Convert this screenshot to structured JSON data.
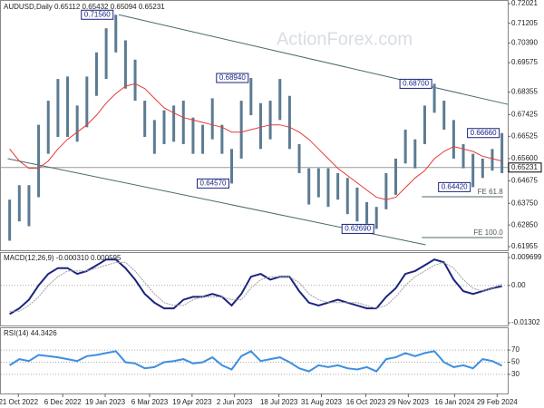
{
  "chart_data": [
    {
      "type": "ohlc",
      "title": "AUDUSD,Daily  0.65112 0.65432 0.65094 0.65231",
      "watermark": "ActionForex.com",
      "x": [
        "12 Oct 2022",
        "22 Oct 2022",
        "1 Nov 2022",
        "11 Nov 2022",
        "21 Nov 2022",
        "1 Dec 2022",
        "11 Dec 2022",
        "21 Dec 2022",
        "31 Dec 2022",
        "10 Jan 2023",
        "20 Jan 2023",
        "30 Jan 2023",
        "9 Feb 2023",
        "19 Feb 2023",
        "1 Mar 2023",
        "11 Mar 2023",
        "21 Mar 2023",
        "31 Mar 2023",
        "10 Apr 2023",
        "20 Apr 2023",
        "30 Apr 2023",
        "10 May 2023",
        "20 May 2023",
        "30 May 2023",
        "9 Jun 2023",
        "19 Jun 2023",
        "29 Jun 2023",
        "9 Jul 2023",
        "19 Jul 2023",
        "29 Jul 2023",
        "8 Aug 2023",
        "18 Aug 2023",
        "28 Aug 2023",
        "7 Sep 2023",
        "17 Sep 2023",
        "27 Sep 2023",
        "7 Oct 2023",
        "17 Oct 2023",
        "27 Oct 2023",
        "6 Nov 2023",
        "16 Nov 2023",
        "26 Nov 2023",
        "6 Dec 2023",
        "16 Dec 2023",
        "26 Dec 2023",
        "5 Jan 2024",
        "15 Jan 2024",
        "25 Jan 2024",
        "4 Feb 2024",
        "14 Feb 2024",
        "24 Feb 2024",
        "5 Mar 2024"
      ],
      "high": [
        0.639,
        0.645,
        0.645,
        0.67,
        0.68,
        0.689,
        0.69,
        0.678,
        0.69,
        0.7,
        0.71,
        0.7156,
        0.705,
        0.697,
        0.68,
        0.672,
        0.676,
        0.678,
        0.68,
        0.673,
        0.67,
        0.681,
        0.67,
        0.66,
        0.68,
        0.6894,
        0.679,
        0.68,
        0.689,
        0.682,
        0.662,
        0.652,
        0.652,
        0.652,
        0.65,
        0.648,
        0.644,
        0.638,
        0.636,
        0.65,
        0.656,
        0.668,
        0.664,
        0.678,
        0.687,
        0.68,
        0.672,
        0.662,
        0.658,
        0.656,
        0.66,
        0.6666
      ],
      "low": [
        0.622,
        0.63,
        0.628,
        0.64,
        0.658,
        0.665,
        0.665,
        0.663,
        0.669,
        0.682,
        0.689,
        0.7,
        0.685,
        0.68,
        0.665,
        0.658,
        0.662,
        0.663,
        0.662,
        0.658,
        0.658,
        0.664,
        0.658,
        0.6457,
        0.656,
        0.674,
        0.66,
        0.664,
        0.672,
        0.66,
        0.65,
        0.637,
        0.64,
        0.636,
        0.639,
        0.633,
        0.63,
        0.629,
        0.6269,
        0.635,
        0.641,
        0.654,
        0.652,
        0.662,
        0.675,
        0.668,
        0.656,
        0.652,
        0.6442,
        0.648,
        0.651,
        0.65
      ],
      "color": "#5b7b92",
      "ma": {
        "color": "#e53935",
        "values": [
          0.66,
          0.655,
          0.652,
          0.652,
          0.655,
          0.66,
          0.664,
          0.667,
          0.67,
          0.674,
          0.679,
          0.683,
          0.686,
          0.687,
          0.685,
          0.681,
          0.677,
          0.675,
          0.673,
          0.672,
          0.671,
          0.67,
          0.669,
          0.667,
          0.667,
          0.668,
          0.669,
          0.67,
          0.67,
          0.669,
          0.667,
          0.664,
          0.66,
          0.656,
          0.652,
          0.649,
          0.646,
          0.643,
          0.64,
          0.639,
          0.64,
          0.644,
          0.648,
          0.651,
          0.656,
          0.659,
          0.661,
          0.66,
          0.659,
          0.657,
          0.656,
          0.655
        ]
      },
      "last": 0.65231,
      "xlim": [
        "2 Oct 2022",
        "11 Mar 2024"
      ],
      "xticks": [
        "21 Oct 2022",
        "6 Dec 2022",
        "19 Jan 2023",
        "6 Mar 2023",
        "19 Apr 2023",
        "2 Jun 2023",
        "18 Jul 2023",
        "31 Aug 2023",
        "16 Oct 2023",
        "29 Nov 2023",
        "16 Jan 2024",
        "29 Feb 2024"
      ],
      "ylim": [
        0.61955,
        0.72021
      ],
      "yticks": [
        0.72021,
        0.71205,
        {
          "value": 0.7039,
          "label": "0.70390"
        },
        0.69575,
        0.68355,
        0.67425,
        0.66525,
        {
          "value": 0.656,
          "label": "0.65600"
        },
        0.64675,
        {
          "value": 0.6375,
          "label": "0.63750"
        },
        {
          "value": 0.6285,
          "label": "0.62850"
        },
        0.61955
      ],
      "channels": [
        {
          "x": [
            "2 Feb 2023",
            "11 Mar 2024"
          ],
          "y": [
            0.7156,
            0.6785
          ]
        },
        {
          "x": [
            "10 Oct 2022",
            "17 Dec 2023"
          ],
          "y": [
            0.656,
            0.6203
          ]
        }
      ],
      "levels": [
        {
          "label": "FE 61.8",
          "value": 0.6402,
          "x": [
            "13 Dec 2023",
            "6 Mar 2024"
          ]
        },
        {
          "label": "FE 100.0",
          "value": 0.6233,
          "x": [
            "13 Dec 2023",
            "6 Mar 2024"
          ]
        }
      ],
      "annotations": [
        {
          "x": "30 Jan 2023",
          "value": 0.7156,
          "label": "0.71560"
        },
        {
          "x": "19 Jun 2023",
          "value": 0.6894,
          "label": "0.68940"
        },
        {
          "x": "30 May 2023",
          "value": 0.6457,
          "label": "0.64570"
        },
        {
          "x": "27 Oct 2023",
          "value": 0.6269,
          "label": "0.62690"
        },
        {
          "x": "26 Dec 2023",
          "value": 0.687,
          "label": "0.68700"
        },
        {
          "x": "5 Mar 2024",
          "value": 0.6666,
          "label": "0.66660"
        },
        {
          "x": "4 Feb 2024",
          "value": 0.6442,
          "label": "0.64420"
        }
      ]
    },
    {
      "type": "line",
      "title": "MACD(12,26,9) -0.000310 0.000595",
      "ylim": [
        -0.01302,
        0.009699
      ],
      "yticks": [
        0.009699,
        {
          "value": 0,
          "label": "0.00"
        },
        -0.01302
      ],
      "series": [
        {
          "color": "#1a237e",
          "values": [
            -0.01,
            -0.008,
            -0.005,
            0.0,
            0.004,
            0.006,
            0.006,
            0.004,
            0.005,
            0.007,
            0.009,
            0.009,
            0.006,
            0.002,
            -0.003,
            -0.006,
            -0.008,
            -0.008,
            -0.005,
            -0.004,
            -0.004,
            -0.003,
            -0.004,
            -0.007,
            -0.003,
            0.003,
            0.004,
            0.002,
            0.003,
            0.003,
            -0.002,
            -0.006,
            -0.007,
            -0.006,
            -0.005,
            -0.006,
            -0.007,
            -0.008,
            -0.008,
            -0.004,
            -0.001,
            0.004,
            0.005,
            0.007,
            0.009,
            0.008,
            0.002,
            -0.002,
            -0.003,
            -0.002,
            -0.001,
            -0.00031
          ]
        },
        {
          "color": "#9e9e9e",
          "dash": true,
          "values": [
            -0.009,
            -0.009,
            -0.007,
            -0.004,
            0.0,
            0.003,
            0.005,
            0.005,
            0.005,
            0.006,
            0.007,
            0.008,
            0.008,
            0.005,
            0.001,
            -0.003,
            -0.006,
            -0.007,
            -0.007,
            -0.005,
            -0.004,
            -0.004,
            -0.004,
            -0.005,
            -0.005,
            -0.001,
            0.002,
            0.003,
            0.003,
            0.003,
            0.001,
            -0.003,
            -0.005,
            -0.006,
            -0.006,
            -0.006,
            -0.006,
            -0.007,
            -0.008,
            -0.007,
            -0.004,
            0.0,
            0.003,
            0.005,
            0.007,
            0.008,
            0.006,
            0.002,
            -0.001,
            -0.002,
            -0.001,
            0.000595
          ]
        }
      ]
    },
    {
      "type": "line",
      "title": "RSI(14) 44.3426",
      "ylim": [
        0,
        100
      ],
      "yticks": [
        70,
        50,
        30
      ],
      "series": [
        {
          "color": "#3d8fe0",
          "values": [
            45,
            55,
            52,
            62,
            60,
            58,
            55,
            52,
            60,
            62,
            65,
            68,
            50,
            48,
            40,
            42,
            50,
            52,
            55,
            48,
            50,
            58,
            45,
            38,
            60,
            68,
            52,
            55,
            58,
            50,
            40,
            35,
            45,
            42,
            45,
            40,
            38,
            42,
            35,
            55,
            58,
            65,
            60,
            65,
            68,
            50,
            42,
            45,
            40,
            55,
            52,
            44.3426
          ]
        }
      ]
    }
  ]
}
